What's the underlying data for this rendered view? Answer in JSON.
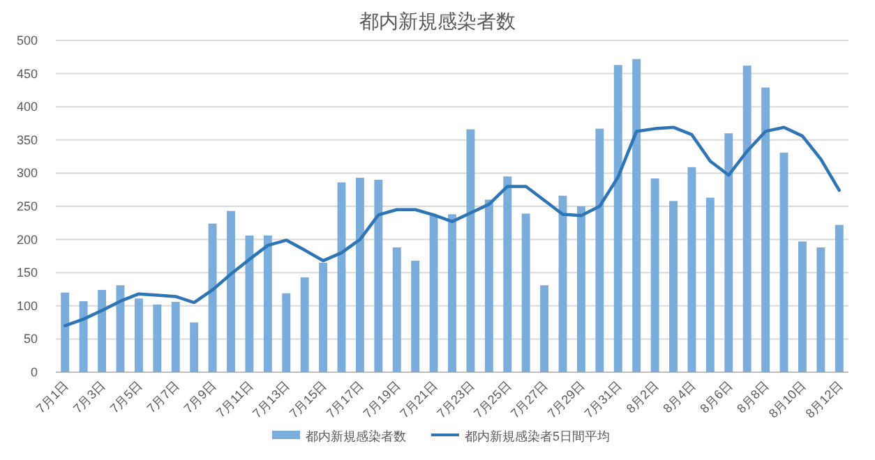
{
  "chart_data": {
    "type": "bar",
    "title": "都内新規感染者数",
    "categories": [
      "7月1日",
      null,
      "7月3日",
      null,
      "7月5日",
      null,
      "7月7日",
      null,
      "7月9日",
      null,
      "7月11日",
      null,
      "7月13日",
      null,
      "7月15日",
      null,
      "7月17日",
      null,
      "7月19日",
      null,
      "7月21日",
      null,
      "7月23日",
      null,
      "7月25日",
      null,
      "7月27日",
      null,
      "7月29日",
      null,
      "7月31日",
      null,
      "8月2日",
      null,
      "8月4日",
      null,
      "8月6日",
      null,
      "8月8日",
      null,
      "8月10日",
      null,
      "8月12日"
    ],
    "series": [
      {
        "name": "都内新規感染者数",
        "color": "#7aacdc",
        "values": [
          120,
          107,
          124,
          131,
          111,
          102,
          106,
          75,
          224,
          243,
          206,
          206,
          119,
          143,
          165,
          286,
          293,
          290,
          188,
          168,
          237,
          238,
          366,
          260,
          295,
          239,
          131,
          266,
          250,
          367,
          463,
          472,
          292,
          258,
          309,
          263,
          360,
          462,
          429,
          331,
          197,
          188,
          222
        ]
      },
      {
        "name": "都内新規感染者5日間平均",
        "type": "line",
        "color": "#2e75b6",
        "values": [
          70,
          80,
          93,
          107,
          118,
          116,
          114,
          105,
          124,
          148,
          170,
          191,
          199,
          184,
          168,
          180,
          200,
          237,
          245,
          245,
          237,
          227,
          240,
          253,
          280,
          280,
          259,
          238,
          236,
          250,
          294,
          363,
          367,
          369,
          358,
          318,
          297,
          333,
          363,
          369,
          356,
          321,
          274
        ]
      }
    ],
    "ylim": [
      0,
      500
    ],
    "yticks": [
      0,
      50,
      100,
      150,
      200,
      250,
      300,
      350,
      400,
      450,
      500
    ],
    "grid": "y",
    "legend": "bottom"
  }
}
